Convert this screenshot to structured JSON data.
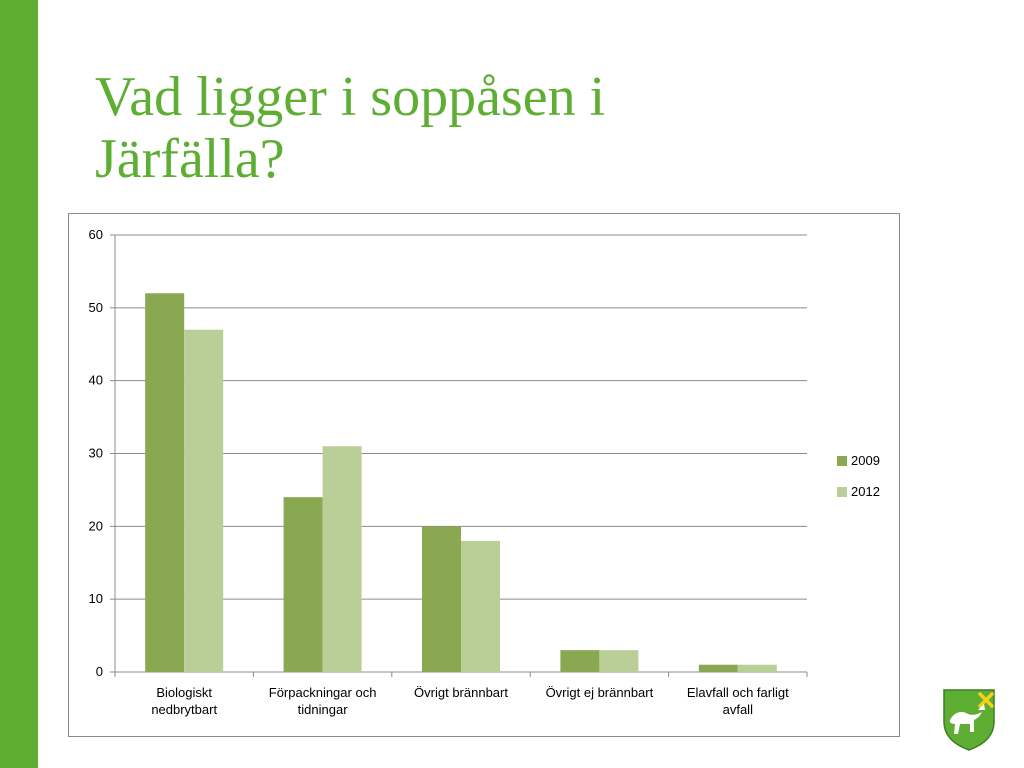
{
  "slide": {
    "title": "Vad ligger i soppåsen i Järfälla?",
    "accent_color": "#5fae34"
  },
  "logo": {
    "icon": "jarfalla-coat-of-arms-icon"
  },
  "chart_data": {
    "type": "bar",
    "title": "",
    "xlabel": "",
    "ylabel": "",
    "categories": [
      [
        "Biologiskt",
        "nedbrytbart"
      ],
      [
        "Förpackningar och",
        "tidningar"
      ],
      [
        "Övrigt brännbart"
      ],
      [
        "Övrigt ej brännbart"
      ],
      [
        "Elavfall och farligt",
        "avfall"
      ]
    ],
    "series": [
      {
        "name": "2009",
        "values": [
          52,
          24,
          20,
          3,
          1
        ],
        "color": "#8aa752"
      },
      {
        "name": "2012",
        "values": [
          47,
          31,
          18,
          3,
          1
        ],
        "color": "#b9cf97"
      }
    ],
    "ylim": [
      0,
      60
    ],
    "yticks": [
      "0",
      "10",
      "20",
      "30",
      "40",
      "50",
      "60"
    ],
    "grid": true,
    "legend": "right"
  }
}
